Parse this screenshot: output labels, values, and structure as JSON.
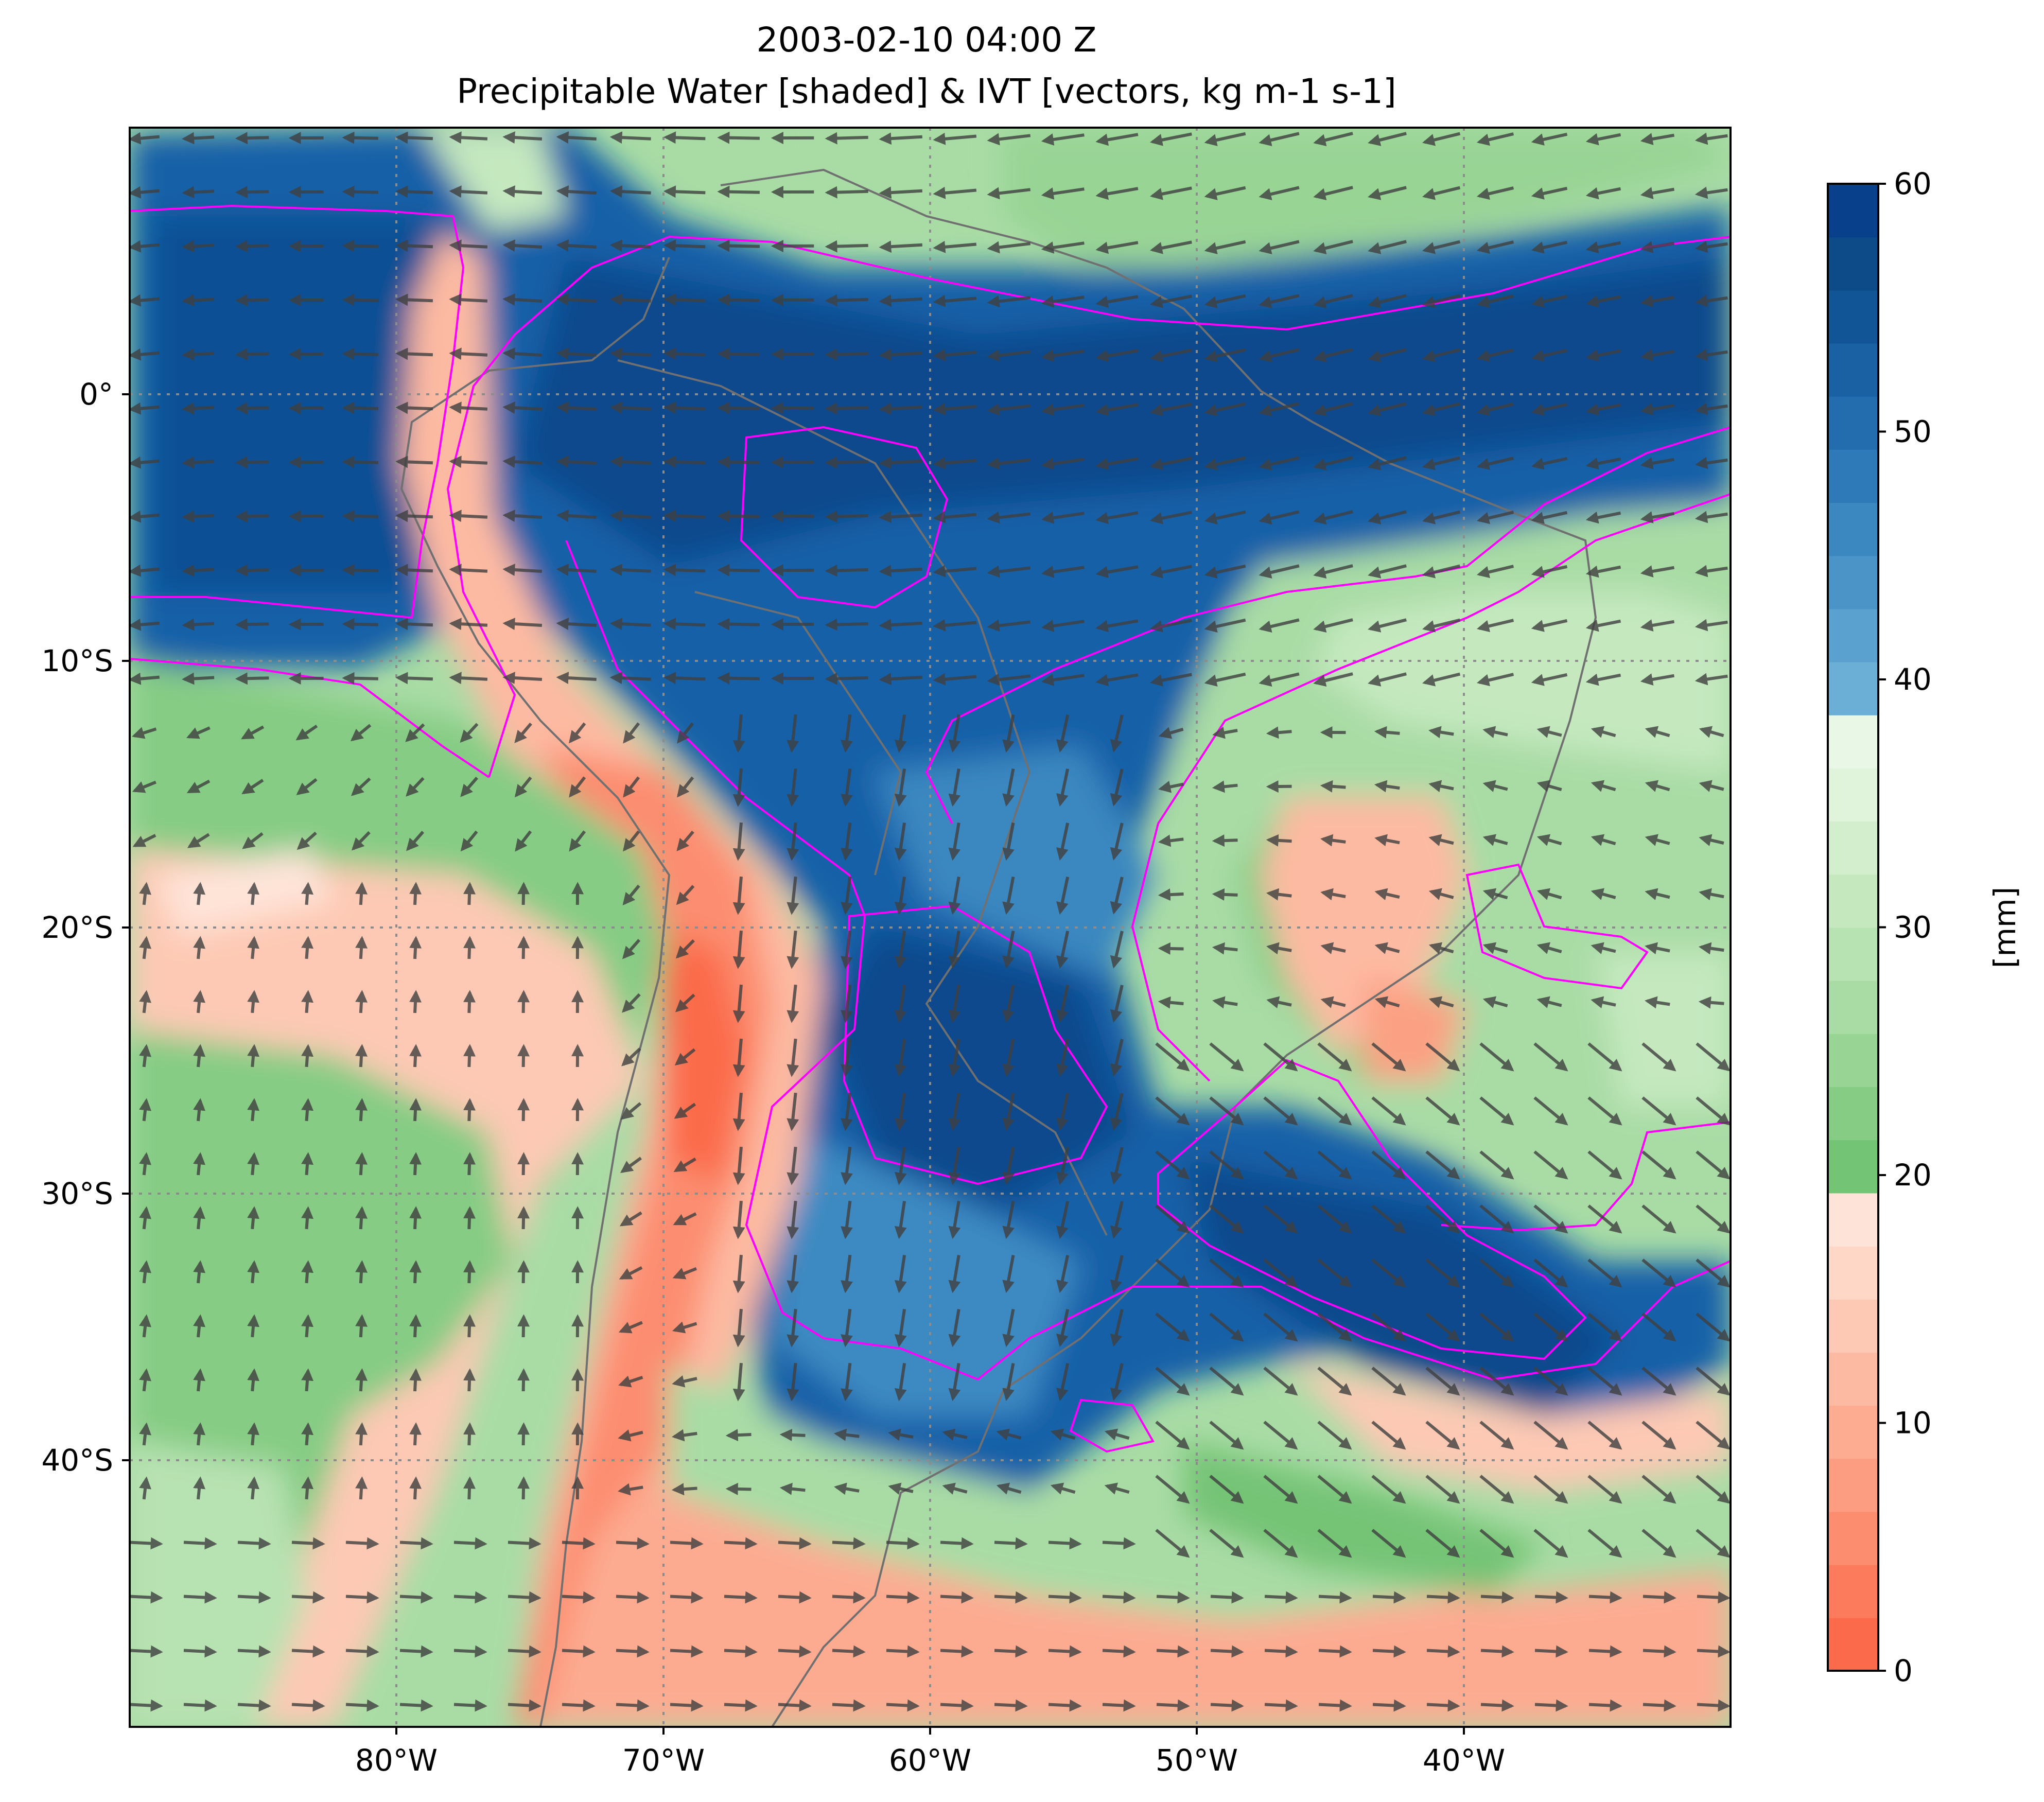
{
  "title_line1": "2003-02-10 04:00 Z",
  "title_line2": "Precipitable Water [shaded] & IVT [vectors, kg m-1 s-1]",
  "map": {
    "lon_range": [
      -90,
      -30
    ],
    "lat_range": [
      -50,
      10
    ],
    "x_ticks": [
      {
        "value": -80,
        "label": "80°W"
      },
      {
        "value": -70,
        "label": "70°W"
      },
      {
        "value": -60,
        "label": "60°W"
      },
      {
        "value": -50,
        "label": "50°W"
      },
      {
        "value": -40,
        "label": "40°W"
      }
    ],
    "y_ticks": [
      {
        "value": 0,
        "label": "0°"
      },
      {
        "value": -10,
        "label": "10°S"
      },
      {
        "value": -20,
        "label": "20°S"
      },
      {
        "value": -30,
        "label": "30°S"
      },
      {
        "value": -40,
        "label": "40°S"
      }
    ],
    "gridlines": true,
    "contour_color": "#ff00ff",
    "vector_color": "#404040",
    "coastline_color": "#707070"
  },
  "colorbar": {
    "label": "[mm]",
    "min": 0,
    "max": 60,
    "ticks": [
      {
        "value": 0,
        "label": "0"
      },
      {
        "value": 10,
        "label": "10"
      },
      {
        "value": 20,
        "label": "20"
      },
      {
        "value": 30,
        "label": "30"
      },
      {
        "value": 40,
        "label": "40"
      },
      {
        "value": 50,
        "label": "50"
      },
      {
        "value": 60,
        "label": "60"
      }
    ],
    "colors": [
      "#fb6a4a",
      "#fc7b5d",
      "#fc8d6f",
      "#fc9c80",
      "#fdab91",
      "#fdbaa2",
      "#fdc9b4",
      "#fed7c6",
      "#fee4d8",
      "#74c476",
      "#86cc85",
      "#98d494",
      "#a9dca5",
      "#b7e2b1",
      "#c5e8bf",
      "#d3eecd",
      "#e0f3db",
      "#e9f7e6",
      "#6baed6",
      "#5aa1cf",
      "#4a94c8",
      "#3b87c0",
      "#2e7ab8",
      "#236daf",
      "#1a61a4",
      "#125597",
      "#0c4a88",
      "#08408b"
    ]
  }
}
